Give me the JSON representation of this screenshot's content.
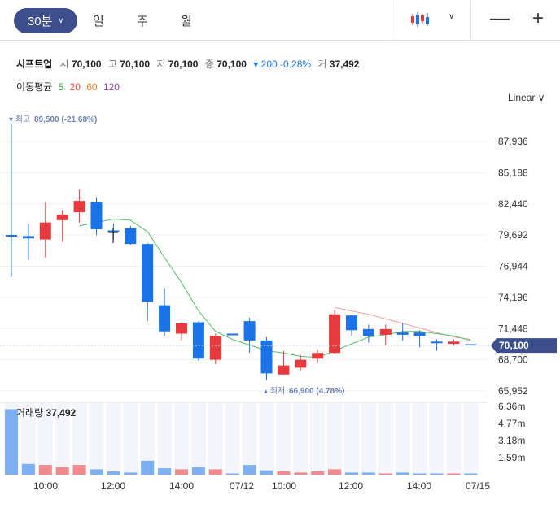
{
  "toolbar": {
    "period_selected": "30분",
    "tabs": [
      "일",
      "주",
      "월"
    ]
  },
  "info": {
    "name": "시프트업",
    "open_label": "시",
    "open": "70,100",
    "high_label": "고",
    "high": "70,100",
    "low_label": "저",
    "low": "70,100",
    "close_label": "종",
    "close": "70,100",
    "change": "200",
    "change_pct": "-0.28%",
    "volume_label": "거",
    "volume": "37,492"
  },
  "ma": {
    "label": "이동평균",
    "periods": [
      {
        "value": "5",
        "color": "#2ca02c"
      },
      {
        "value": "20",
        "color": "#e74c3c"
      },
      {
        "value": "60",
        "color": "#e67e22"
      },
      {
        "value": "120",
        "color": "#8e44ad"
      }
    ]
  },
  "scale_mode": "Linear",
  "colors": {
    "up": "#e8393c",
    "down": "#1a73e8",
    "ma5": "#2ca02c",
    "ma20": "#e74c3c",
    "accent": "#3d4e8c"
  },
  "chart_data": {
    "type": "candlestick",
    "price_axis": {
      "ticks": [
        "87,936",
        "85,188",
        "82,440",
        "79,692",
        "76,944",
        "74,196",
        "71,448",
        "68,700",
        "65,952"
      ],
      "current": "70,100"
    },
    "high_marker": {
      "label": "최고",
      "value": "89,500 (-21.68%)"
    },
    "low_marker": {
      "label": "최저",
      "value": "66,900 (4.78%)"
    },
    "x_labels": [
      "10:00",
      "12:00",
      "14:00",
      "07/12",
      "10:00",
      "12:00",
      "14:00",
      "07/15"
    ],
    "candles": [
      {
        "o": 79700,
        "h": 89500,
        "l": 76000,
        "c": 79700
      },
      {
        "o": 79600,
        "h": 80700,
        "l": 77500,
        "c": 79400
      },
      {
        "o": 79300,
        "h": 82600,
        "l": 77700,
        "c": 80800
      },
      {
        "o": 81000,
        "h": 81900,
        "l": 79100,
        "c": 81500
      },
      {
        "o": 81700,
        "h": 83700,
        "l": 80800,
        "c": 82700
      },
      {
        "o": 82600,
        "h": 83000,
        "l": 79700,
        "c": 80200
      },
      {
        "o": 80100,
        "h": 80700,
        "l": 79300,
        "c": 80100
      },
      {
        "o": 80300,
        "h": 80500,
        "l": 78800,
        "c": 78900
      },
      {
        "o": 78900,
        "h": 79000,
        "l": 72100,
        "c": 73800
      },
      {
        "o": 73500,
        "h": 75000,
        "l": 70800,
        "c": 71200
      },
      {
        "o": 71000,
        "h": 72000,
        "l": 70400,
        "c": 71900
      },
      {
        "o": 72000,
        "h": 72100,
        "l": 68600,
        "c": 68800
      },
      {
        "o": 68700,
        "h": 71000,
        "l": 68300,
        "c": 70800
      },
      {
        "o": 71000,
        "h": 71000,
        "l": 71000,
        "c": 71000
      },
      {
        "o": 72100,
        "h": 72400,
        "l": 69300,
        "c": 70400
      },
      {
        "o": 70400,
        "h": 70700,
        "l": 66900,
        "c": 67500
      },
      {
        "o": 67400,
        "h": 69500,
        "l": 67400,
        "c": 68200
      },
      {
        "o": 68000,
        "h": 69100,
        "l": 67800,
        "c": 68700
      },
      {
        "o": 68800,
        "h": 69600,
        "l": 68500,
        "c": 69300
      },
      {
        "o": 69300,
        "h": 73100,
        "l": 69200,
        "c": 72700
      },
      {
        "o": 72600,
        "h": 72600,
        "l": 70800,
        "c": 71300
      },
      {
        "o": 71400,
        "h": 71800,
        "l": 70200,
        "c": 70800
      },
      {
        "o": 70900,
        "h": 71800,
        "l": 70000,
        "c": 71400
      },
      {
        "o": 71100,
        "h": 71900,
        "l": 70400,
        "c": 70900
      },
      {
        "o": 71100,
        "h": 71300,
        "l": 69800,
        "c": 70800
      },
      {
        "o": 70300,
        "h": 70500,
        "l": 69500,
        "c": 70300
      },
      {
        "o": 70100,
        "h": 70500,
        "l": 69900,
        "c": 70300
      },
      {
        "o": 70100,
        "h": 70100,
        "l": 70100,
        "c": 70100
      }
    ],
    "ma5": [
      null,
      null,
      null,
      null,
      80500,
      80800,
      81100,
      81000,
      80000,
      77700,
      75500,
      73000,
      71200,
      70500,
      70000,
      69500,
      69300,
      69000,
      68900,
      69500,
      70100,
      70700,
      70900,
      71200,
      71200,
      71000,
      70800,
      70400
    ],
    "ma20": [
      null,
      null,
      null,
      null,
      null,
      null,
      null,
      null,
      null,
      null,
      null,
      null,
      null,
      null,
      null,
      null,
      null,
      null,
      null,
      73300,
      73000,
      72700,
      72300,
      71900,
      71500,
      71100,
      70700,
      70500
    ],
    "volume_label": "거래량",
    "volume_value": "37,492",
    "volume_ticks": [
      "6.36m",
      "4.77m",
      "3.18m",
      "1.59m"
    ],
    "volumes": [
      6.1,
      1.0,
      0.9,
      0.7,
      0.9,
      0.5,
      0.3,
      0.2,
      1.3,
      0.6,
      0.5,
      0.7,
      0.5,
      0.1,
      0.9,
      0.4,
      0.3,
      0.2,
      0.3,
      0.5,
      0.2,
      0.2,
      0.1,
      0.2,
      0.1,
      0.1,
      0.05,
      0.02
    ]
  }
}
